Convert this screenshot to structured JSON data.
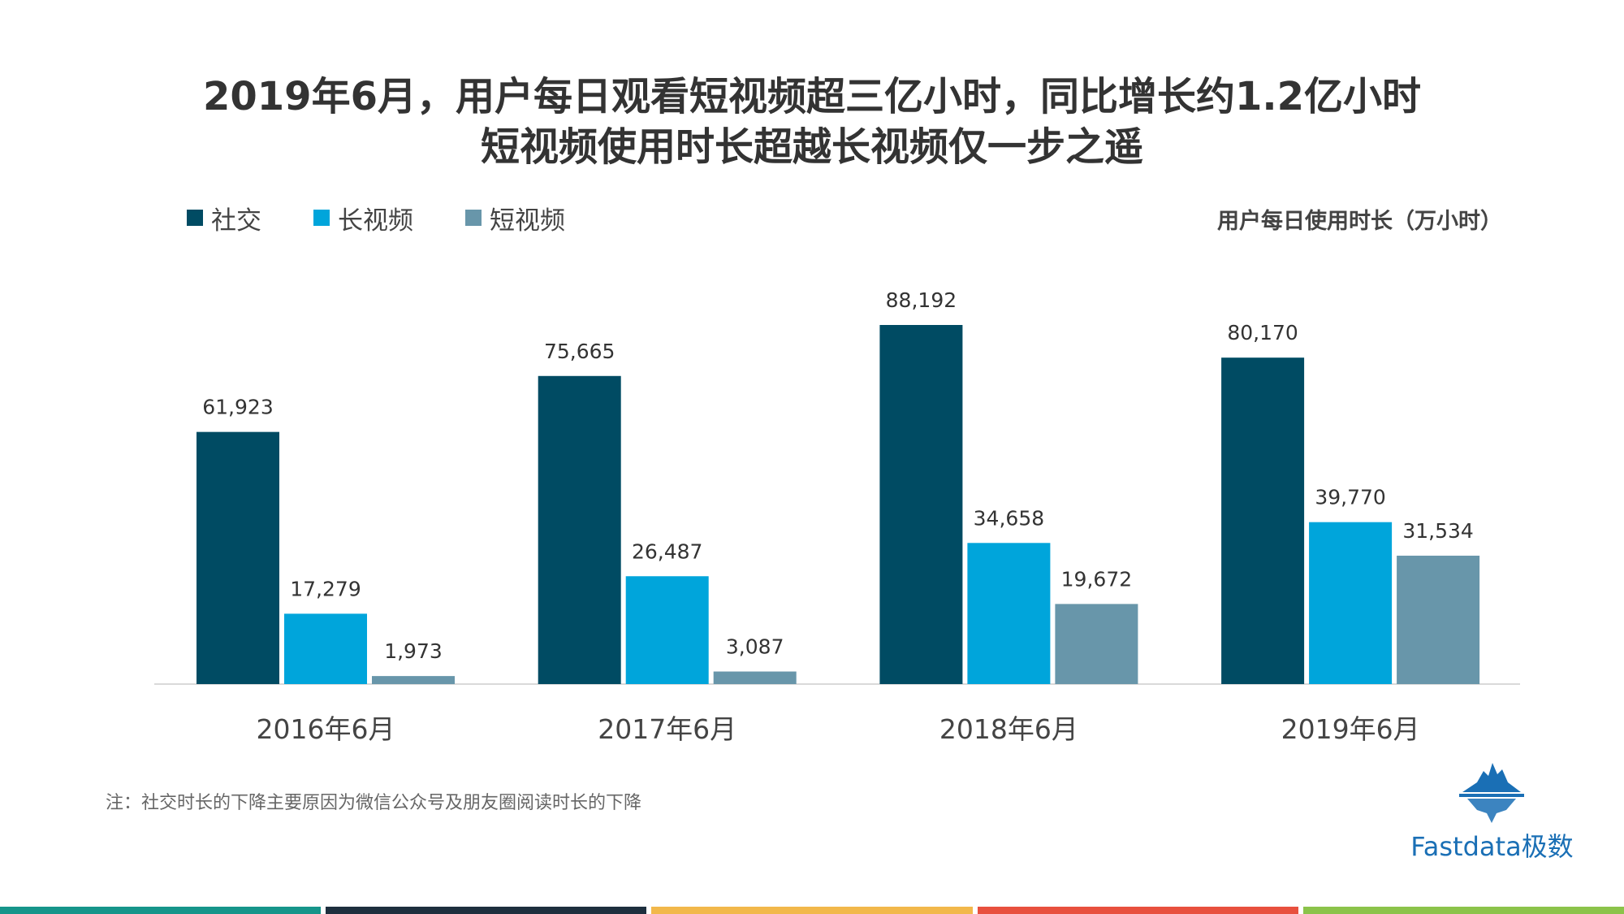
{
  "title": {
    "line1": "2019年6月，用户每日观看短视频超三亿小时，同比增长约1.2亿小时",
    "line2": "短视频使用时长超越长视频仅一步之遥"
  },
  "unit_label": "用户每日使用时长（万小时）",
  "note": "注：社交时长的下降主要原因为微信公众号及朋友圈阅读时长的下降",
  "brand": {
    "text": "Fastdata极数",
    "color": "#1a6fb5"
  },
  "footer_colors": [
    "#16958a",
    "#1e2f3e",
    "#f2b84b",
    "#e8503e",
    "#8bc34a"
  ],
  "chart_data": {
    "type": "bar",
    "categories": [
      "2016年6月",
      "2017年6月",
      "2018年6月",
      "2019年6月"
    ],
    "series": [
      {
        "name": "社交",
        "color": "#004b63",
        "values": [
          61923,
          75665,
          88192,
          80170
        ],
        "labels": [
          "61,923",
          "75,665",
          "88,192",
          "80,170"
        ]
      },
      {
        "name": "长视频",
        "color": "#00a5db",
        "values": [
          17279,
          26487,
          34658,
          39770
        ],
        "labels": [
          "17,279",
          "26,487",
          "34,658",
          "39,770"
        ]
      },
      {
        "name": "短视频",
        "color": "#6896aa",
        "values": [
          1973,
          3087,
          19672,
          31534
        ],
        "labels": [
          "1,973",
          "3,087",
          "19,672",
          "31,534"
        ]
      }
    ],
    "ylim": [
      0,
      88192
    ],
    "grid": false,
    "legend_position": "top-left"
  }
}
